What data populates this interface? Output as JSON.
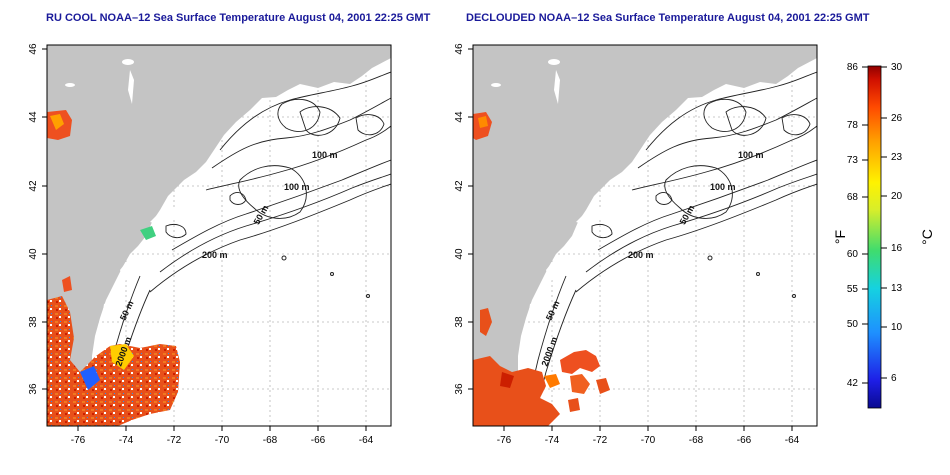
{
  "panels": [
    {
      "title": "RU COOL NOAA–12 Sea Surface Temperature August 04, 2001 22:25 GMT",
      "type": "raw"
    },
    {
      "title": "DECLOUDED NOAA–12 Sea Surface Temperature August 04, 2001 22:25 GMT",
      "type": "declouded"
    }
  ],
  "axes": {
    "longitude_ticks": [
      "-76",
      "-74",
      "-72",
      "-70",
      "-68",
      "-66",
      "-64"
    ],
    "latitude_ticks": [
      "36",
      "38",
      "40",
      "42",
      "44",
      "46"
    ]
  },
  "contour_labels": [
    "100 m",
    "100 m",
    "50 m",
    "200 m",
    "50 m",
    "2000 m"
  ],
  "colorbar": {
    "fahrenheit_ticks": [
      "86",
      "78",
      "73",
      "68",
      "60",
      "55",
      "50",
      "42"
    ],
    "celsius_ticks": [
      "30",
      "26",
      "23",
      "20",
      "16",
      "13",
      "10",
      "6"
    ],
    "label_f": "°F",
    "label_c": "°C",
    "range_c": [
      4,
      30
    ]
  },
  "colors": {
    "land": "#c4c4c4",
    "title": "#1a1a9a",
    "warm": "#e8501a",
    "hot": "#cc1f00"
  }
}
